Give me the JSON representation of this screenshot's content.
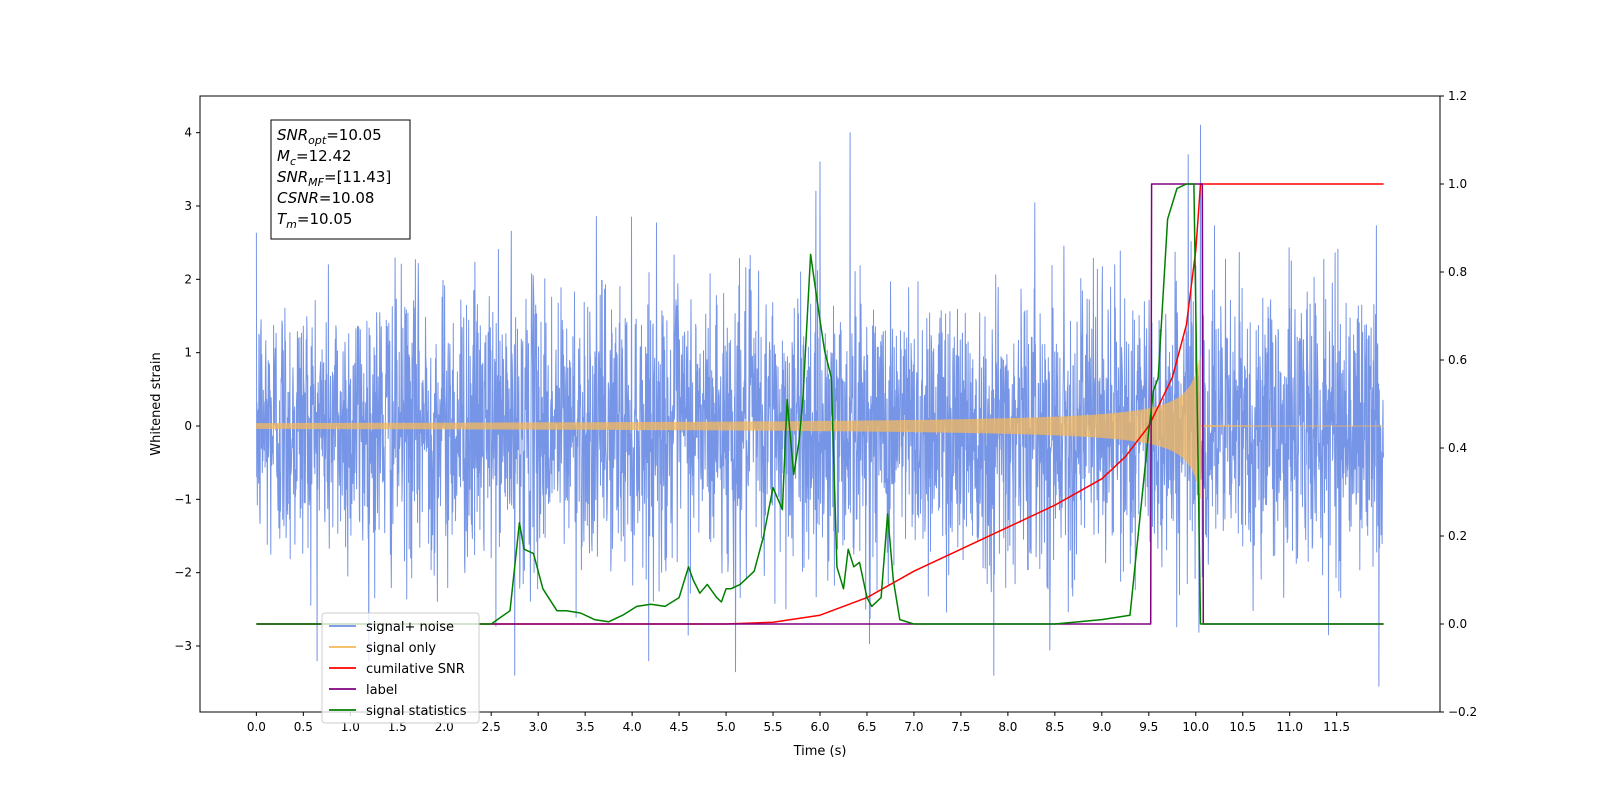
{
  "chart_data": {
    "type": "line",
    "title": "",
    "xlabel": "Time (s)",
    "ylabel": "Whitened strain",
    "xlim": [
      -0.6,
      12.6
    ],
    "ylim": [
      -3.9,
      4.5
    ],
    "y2lim": [
      -0.2,
      1.2
    ],
    "x_ticks": [
      "0.0",
      "0.5",
      "1.0",
      "1.5",
      "2.0",
      "2.5",
      "3.0",
      "3.5",
      "4.0",
      "4.5",
      "5.0",
      "5.5",
      "6.0",
      "6.5",
      "7.0",
      "7.5",
      "8.0",
      "8.5",
      "9.0",
      "9.5",
      "10.0",
      "10.5",
      "11.0",
      "11.5"
    ],
    "y_ticks": [
      "−3",
      "−2",
      "−1",
      "0",
      "1",
      "2",
      "3",
      "4"
    ],
    "y2_ticks": [
      "−0.2",
      "0.0",
      "0.2",
      "0.4",
      "0.6",
      "0.8",
      "1.0",
      "1.2"
    ],
    "grid": false,
    "legend_position": "lower-left",
    "colors": {
      "signal_noise": "#6f8fe6",
      "signal_only": "#f5b85a",
      "cumulative_snr": "#ff0000",
      "label": "#800080",
      "signal_statistics": "#008000"
    },
    "annotation": {
      "lines": [
        {
          "base": "SNR",
          "sub": "opt",
          "value": "=10.05"
        },
        {
          "base": "M",
          "sub": "c",
          "value": "=12.42"
        },
        {
          "base": "SNR",
          "sub": "MF",
          "value": "=[11.43]"
        },
        {
          "base": "CSNR",
          "sub": "",
          "value": "=10.08"
        },
        {
          "base": "T",
          "sub": "m",
          "value": "=10.05"
        }
      ]
    },
    "series": [
      {
        "name": "signal+ noise",
        "axis": "left",
        "kind": "noise",
        "x_range": [
          0.0,
          12.0
        ],
        "std": 0.95,
        "peaks": [
          {
            "x": 6.0,
            "y": 3.6
          },
          {
            "x": 6.32,
            "y": 4.0
          },
          {
            "x": 10.05,
            "y": 4.1
          },
          {
            "x": 9.92,
            "y": 3.7
          },
          {
            "x": 7.85,
            "y": -3.4
          },
          {
            "x": 11.95,
            "y": -3.55
          },
          {
            "x": 5.1,
            "y": -3.35
          },
          {
            "x": 2.75,
            "y": -3.4
          }
        ]
      },
      {
        "name": "signal only",
        "axis": "left",
        "kind": "chirp",
        "x_range": [
          0.0,
          12.0
        ],
        "merger": 10.05,
        "max_amp": 1.0
      },
      {
        "name": "cumilative SNR",
        "axis": "right",
        "x": [
          0.0,
          5.0,
          5.5,
          6.0,
          6.5,
          7.0,
          7.5,
          8.0,
          8.5,
          9.0,
          9.25,
          9.5,
          9.75,
          9.9,
          10.0,
          10.05,
          12.0
        ],
        "y": [
          0.0,
          0.0,
          0.004,
          0.02,
          0.06,
          0.12,
          0.17,
          0.22,
          0.27,
          0.33,
          0.38,
          0.45,
          0.56,
          0.68,
          0.85,
          1.0,
          1.0
        ]
      },
      {
        "name": "label",
        "axis": "right",
        "x": [
          0.0,
          9.52,
          9.53,
          10.07,
          10.08,
          12.0
        ],
        "y": [
          0.0,
          0.0,
          1.0,
          1.0,
          0.0,
          0.0
        ]
      },
      {
        "name": "signal statistics",
        "axis": "right",
        "x": [
          0.0,
          2.5,
          2.6,
          2.7,
          2.8,
          2.85,
          2.95,
          3.05,
          3.2,
          3.3,
          3.45,
          3.6,
          3.75,
          3.9,
          4.05,
          4.2,
          4.35,
          4.5,
          4.6,
          4.65,
          4.72,
          4.8,
          4.9,
          4.95,
          5.0,
          5.05,
          5.15,
          5.3,
          5.4,
          5.5,
          5.6,
          5.65,
          5.72,
          5.78,
          5.82,
          5.9,
          6.0,
          6.05,
          6.12,
          6.18,
          6.25,
          6.3,
          6.36,
          6.42,
          6.5,
          6.55,
          6.65,
          6.72,
          6.78,
          6.85,
          7.0,
          7.2,
          8.5,
          9.0,
          9.3,
          9.5,
          9.55,
          9.6,
          9.7,
          9.8,
          9.9,
          9.98,
          10.05,
          12.0
        ],
        "y": [
          0.0,
          0.0,
          0.015,
          0.03,
          0.23,
          0.17,
          0.16,
          0.08,
          0.03,
          0.03,
          0.025,
          0.01,
          0.005,
          0.02,
          0.04,
          0.045,
          0.04,
          0.06,
          0.13,
          0.1,
          0.07,
          0.09,
          0.06,
          0.05,
          0.08,
          0.08,
          0.09,
          0.12,
          0.2,
          0.31,
          0.26,
          0.51,
          0.34,
          0.42,
          0.52,
          0.84,
          0.69,
          0.62,
          0.56,
          0.13,
          0.08,
          0.17,
          0.13,
          0.14,
          0.06,
          0.04,
          0.06,
          0.25,
          0.1,
          0.01,
          0.0,
          0.0,
          0.0,
          0.01,
          0.02,
          0.44,
          0.53,
          0.56,
          0.92,
          0.99,
          1.0,
          1.0,
          0.0,
          0.0
        ]
      }
    ],
    "legend": [
      {
        "label": "signal+ noise",
        "color_key": "signal_noise"
      },
      {
        "label": "signal only",
        "color_key": "signal_only"
      },
      {
        "label": "cumilative SNR",
        "color_key": "cumulative_snr"
      },
      {
        "label": "label",
        "color_key": "label"
      },
      {
        "label": "signal statistics",
        "color_key": "signal_statistics"
      }
    ]
  }
}
